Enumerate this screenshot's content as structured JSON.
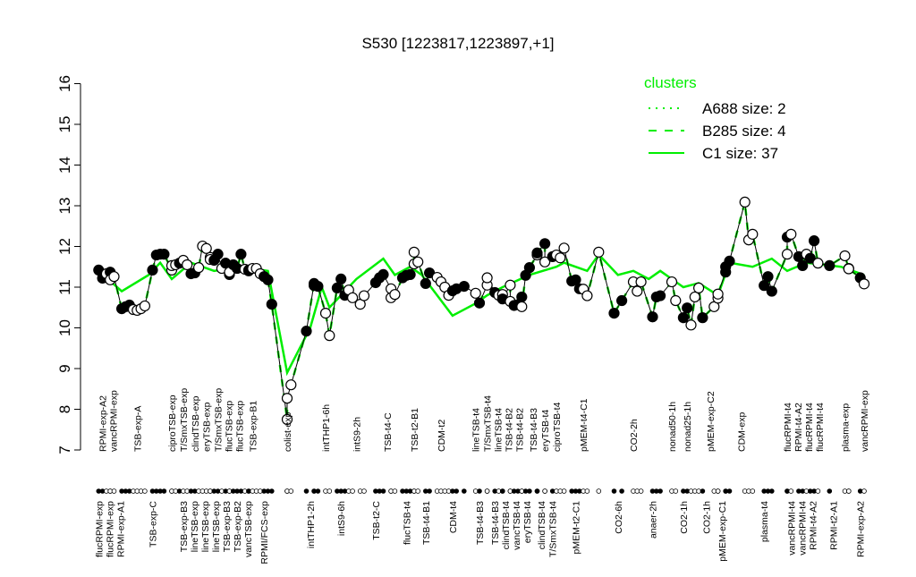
{
  "chart_data": {
    "type": "line",
    "title": "S530 [1223817,1223897,+1]",
    "xlabel": "",
    "ylabel": "",
    "ylim": [
      7,
      16
    ],
    "yticks": [
      7,
      8,
      9,
      10,
      11,
      12,
      13,
      14,
      15,
      16
    ],
    "xlim": [
      0,
      201
    ],
    "grid": false,
    "colors": {
      "profile": "#000000",
      "cluster": "#00ee00"
    },
    "legend": {
      "title": "clusters",
      "placement": "top-right",
      "entries": [
        {
          "label": "A688 size: 2",
          "style": "dotted"
        },
        {
          "label": "B285 size: 4",
          "style": "dashed"
        },
        {
          "label": "C1 size: 37",
          "style": "solid"
        }
      ]
    },
    "points": [
      [
        1,
        11.42,
        1
      ],
      [
        2,
        11.22,
        1
      ],
      [
        3,
        11.33,
        0
      ],
      [
        4,
        11.37,
        1
      ],
      [
        4,
        11.18,
        0
      ],
      [
        5,
        11.26,
        0
      ],
      [
        7,
        10.47,
        1
      ],
      [
        8,
        10.52,
        1
      ],
      [
        9,
        10.56,
        1
      ],
      [
        10,
        10.45,
        0
      ],
      [
        11,
        10.43,
        0
      ],
      [
        12,
        10.47,
        0
      ],
      [
        13,
        10.54,
        0
      ],
      [
        15,
        11.42,
        1
      ],
      [
        16,
        11.79,
        1
      ],
      [
        17,
        11.81,
        1
      ],
      [
        18,
        11.81,
        1
      ],
      [
        20,
        11.42,
        0
      ],
      [
        20,
        11.53,
        0
      ],
      [
        21,
        11.55,
        0
      ],
      [
        22,
        11.59,
        1
      ],
      [
        23,
        11.66,
        0
      ],
      [
        24,
        11.55,
        0
      ],
      [
        25,
        11.33,
        1
      ],
      [
        26,
        11.35,
        1
      ],
      [
        27,
        11.48,
        0
      ],
      [
        28,
        12.01,
        0
      ],
      [
        29,
        11.95,
        0
      ],
      [
        30,
        11.73,
        0
      ],
      [
        30,
        11.68,
        0
      ],
      [
        31,
        11.66,
        1
      ],
      [
        32,
        11.81,
        1
      ],
      [
        33,
        11.46,
        0
      ],
      [
        34,
        11.59,
        1
      ],
      [
        35,
        11.31,
        1
      ],
      [
        35,
        11.37,
        0
      ],
      [
        36,
        11.55,
        1
      ],
      [
        37,
        11.46,
        1
      ],
      [
        38,
        11.81,
        1
      ],
      [
        39,
        11.44,
        0
      ],
      [
        40,
        11.42,
        1
      ],
      [
        40,
        11.4,
        1
      ],
      [
        41,
        11.46,
        0
      ],
      [
        42,
        11.46,
        0
      ],
      [
        43,
        11.33,
        0
      ],
      [
        44,
        11.26,
        1
      ],
      [
        45,
        11.18,
        1
      ],
      [
        46,
        10.58,
        1
      ],
      [
        50,
        7.75,
        0
      ],
      [
        50,
        8.27,
        0
      ],
      [
        51,
        8.6,
        0
      ],
      [
        55,
        9.92,
        1
      ],
      [
        57,
        11.09,
        1
      ],
      [
        57,
        11.04,
        1
      ],
      [
        58,
        11.02,
        1
      ],
      [
        60,
        10.36,
        0
      ],
      [
        61,
        9.81,
        0
      ],
      [
        63,
        10.98,
        1
      ],
      [
        64,
        11.2,
        1
      ],
      [
        65,
        10.8,
        1
      ],
      [
        66,
        10.93,
        0
      ],
      [
        67,
        10.74,
        0
      ],
      [
        69,
        10.58,
        0
      ],
      [
        70,
        10.79,
        0
      ],
      [
        73,
        11.11,
        1
      ],
      [
        74,
        11.23,
        1
      ],
      [
        75,
        11.31,
        1
      ],
      [
        77,
        10.96,
        0
      ],
      [
        77,
        10.74,
        0
      ],
      [
        78,
        10.82,
        0
      ],
      [
        80,
        11.23,
        1
      ],
      [
        81,
        11.29,
        1
      ],
      [
        82,
        11.31,
        1
      ],
      [
        83,
        11.57,
        0
      ],
      [
        83,
        11.86,
        0
      ],
      [
        84,
        11.62,
        0
      ],
      [
        86,
        11.09,
        1
      ],
      [
        87,
        11.35,
        1
      ],
      [
        89,
        11.24,
        0
      ],
      [
        90,
        11.13,
        0
      ],
      [
        91,
        11.0,
        0
      ],
      [
        92,
        10.8,
        0
      ],
      [
        93,
        10.91,
        1
      ],
      [
        94,
        10.96,
        1
      ],
      [
        96,
        11.02,
        1
      ],
      [
        99,
        10.85,
        0
      ],
      [
        100,
        10.61,
        1
      ],
      [
        102,
        11.05,
        0
      ],
      [
        102,
        11.23,
        0
      ],
      [
        104,
        10.87,
        1
      ],
      [
        105,
        10.8,
        0
      ],
      [
        106,
        10.82,
        0
      ],
      [
        106,
        10.71,
        1
      ],
      [
        108,
        11.05,
        0
      ],
      [
        108,
        10.65,
        0
      ],
      [
        109,
        10.55,
        1
      ],
      [
        110,
        10.57,
        1
      ],
      [
        111,
        10.76,
        1
      ],
      [
        111,
        10.52,
        0
      ],
      [
        112,
        11.29,
        1
      ],
      [
        113,
        11.48,
        1
      ],
      [
        115,
        11.79,
        0
      ],
      [
        115,
        11.84,
        1
      ],
      [
        117,
        12.07,
        1
      ],
      [
        117,
        11.62,
        0
      ],
      [
        119,
        11.75,
        1
      ],
      [
        120,
        11.79,
        0
      ],
      [
        121,
        11.72,
        0
      ],
      [
        122,
        11.96,
        0
      ],
      [
        124,
        11.15,
        1
      ],
      [
        125,
        11.18,
        1
      ],
      [
        126,
        10.96,
        1
      ],
      [
        127,
        10.95,
        0
      ],
      [
        128,
        10.79,
        0
      ],
      [
        131,
        11.86,
        0
      ],
      [
        135,
        10.36,
        1
      ],
      [
        137,
        10.67,
        1
      ],
      [
        140,
        11.13,
        0
      ],
      [
        141,
        10.9,
        0
      ],
      [
        142,
        11.13,
        0
      ],
      [
        145,
        10.27,
        1
      ],
      [
        146,
        10.76,
        1
      ],
      [
        147,
        10.79,
        1
      ],
      [
        150,
        11.13,
        0
      ],
      [
        151,
        10.67,
        0
      ],
      [
        153,
        10.25,
        1
      ],
      [
        154,
        10.49,
        1
      ],
      [
        155,
        10.07,
        0
      ],
      [
        156,
        10.76,
        0
      ],
      [
        157,
        10.98,
        0
      ],
      [
        158,
        10.25,
        1
      ],
      [
        161,
        10.52,
        0
      ],
      [
        162,
        10.73,
        0
      ],
      [
        162,
        10.83,
        0
      ],
      [
        164,
        11.37,
        1
      ],
      [
        164,
        11.5,
        1
      ],
      [
        165,
        11.64,
        1
      ],
      [
        169,
        13.09,
        0
      ],
      [
        170,
        12.16,
        0
      ],
      [
        171,
        12.3,
        0
      ],
      [
        174,
        11.04,
        1
      ],
      [
        175,
        11.26,
        1
      ],
      [
        176,
        10.9,
        1
      ],
      [
        180,
        11.81,
        0
      ],
      [
        180,
        12.23,
        1
      ],
      [
        181,
        12.3,
        0
      ],
      [
        183,
        11.75,
        1
      ],
      [
        184,
        11.53,
        1
      ],
      [
        185,
        11.81,
        0
      ],
      [
        186,
        11.71,
        1
      ],
      [
        187,
        12.14,
        1
      ],
      [
        188,
        11.59,
        0
      ],
      [
        191,
        11.53,
        1
      ],
      [
        195,
        11.77,
        0
      ],
      [
        196,
        11.46,
        0
      ],
      [
        196,
        11.45,
        0
      ],
      [
        199,
        11.23,
        1
      ],
      [
        200,
        11.08,
        0
      ]
    ],
    "series": [
      {
        "name": "C1 size: 37",
        "style": "solid",
        "points": [
          [
            1,
            11.4
          ],
          [
            7,
            10.9
          ],
          [
            14,
            11.3
          ],
          [
            17,
            11.6
          ],
          [
            20,
            11.2
          ],
          [
            25,
            11.6
          ],
          [
            31,
            11.4
          ],
          [
            38,
            11.5
          ],
          [
            45,
            11.4
          ],
          [
            50,
            8.9
          ],
          [
            56,
            10.0
          ],
          [
            59,
            11.0
          ],
          [
            61,
            10.5
          ],
          [
            68,
            11.2
          ],
          [
            75,
            11.7
          ],
          [
            78,
            11.3
          ],
          [
            82,
            11.5
          ],
          [
            85,
            11.3
          ],
          [
            93,
            10.3
          ],
          [
            99,
            10.6
          ],
          [
            102,
            10.8
          ],
          [
            106,
            11.0
          ],
          [
            113,
            11.3
          ],
          [
            120,
            11.5
          ],
          [
            122,
            11.6
          ],
          [
            128,
            11.4
          ],
          [
            131,
            11.8
          ],
          [
            136,
            11.3
          ],
          [
            140,
            11.4
          ],
          [
            144,
            11.2
          ],
          [
            147,
            11.4
          ],
          [
            153,
            11.0
          ],
          [
            157,
            11.1
          ],
          [
            162,
            10.8
          ],
          [
            165,
            11.6
          ],
          [
            171,
            11.5
          ],
          [
            176,
            11.7
          ],
          [
            180,
            11.4
          ],
          [
            185,
            11.6
          ],
          [
            194,
            11.5
          ],
          [
            200,
            11.3
          ]
        ]
      }
    ],
    "top_labels": [
      [
        2,
        "RPMI-exp-A2"
      ],
      [
        4,
        "vancRPMI-exp"
      ],
      [
        11,
        "TSB-exp-A"
      ],
      [
        20,
        "ciproTSB-exp"
      ],
      [
        23,
        "T/SmxTSB-exp"
      ],
      [
        26,
        "clindTSB-exp"
      ],
      [
        29,
        "eryTSB-exp"
      ],
      [
        32,
        "T/SmxTSB-exp"
      ],
      [
        34,
        "flucTSB-exp"
      ],
      [
        37,
        "flucTSB-exp"
      ],
      [
        41,
        "TSB-exp-B1"
      ],
      [
        50,
        "colist-exp"
      ],
      [
        60,
        "intTHP1-6h"
      ],
      [
        68,
        "intS9-2h"
      ],
      [
        76,
        "TSB-t4-C"
      ],
      [
        83,
        "TSB-t2-B1"
      ],
      [
        90,
        "CDM-t2"
      ],
      [
        99,
        "lineTSB-t4"
      ],
      [
        102,
        "T/SmxTSB-t4"
      ],
      [
        104,
        "lineTSB-t4"
      ],
      [
        107,
        "TSB-t4-B2"
      ],
      [
        110,
        "TSB-t4-B2"
      ],
      [
        114,
        "TSB-t4-B3"
      ],
      [
        117,
        "eryTSB-t4"
      ],
      [
        120,
        "ciproTSB-t4"
      ],
      [
        127,
        "pMEM-t4-C1"
      ],
      [
        140,
        "CO2-2h"
      ],
      [
        150,
        "nonad50-1h"
      ],
      [
        154,
        "nonad25-1h"
      ],
      [
        160,
        "pMEM-exp-C2"
      ],
      [
        168,
        "CDM-exp"
      ],
      [
        180,
        "flucRPMI-t4"
      ],
      [
        181,
        "RPMI-t4-A2"
      ],
      [
        185,
        "flucRPMI-t4"
      ],
      [
        188,
        "flucRPMI-t4"
      ],
      [
        195,
        "plasma-exp"
      ],
      [
        200,
        "vancRPMI-exp"
      ]
    ],
    "bottom_labels": [
      [
        1,
        "flucRPMI-exp"
      ],
      [
        3,
        "flucRPMI-exp"
      ],
      [
        6,
        "RPMI-exp-A1"
      ],
      [
        15,
        "TSB-exp-C"
      ],
      [
        23,
        "TSB-exp-B3"
      ],
      [
        25,
        "lineTSB-exp"
      ],
      [
        28,
        "lineTSB-exp"
      ],
      [
        31,
        "lineTSB-exp"
      ],
      [
        32,
        "TSB-exp-B3"
      ],
      [
        35,
        "TSB-exp-B2"
      ],
      [
        38,
        "vancTSB-exp"
      ],
      [
        44,
        "RPMI/FCS-exp"
      ],
      [
        56,
        "intTHP1-2h"
      ],
      [
        64,
        "intS9-6h"
      ],
      [
        73,
        "TSB-t2-C"
      ],
      [
        81,
        "flucTSB-t4"
      ],
      [
        86,
        "TSB-t4-B1"
      ],
      [
        93,
        "CDM-t4"
      ],
      [
        100,
        "TSB-t4-B3"
      ],
      [
        104,
        "TSB-t4-B3"
      ],
      [
        106,
        "clindTSB-t4"
      ],
      [
        109,
        "vancTSB-t4"
      ],
      [
        112,
        "eryTSB-t4"
      ],
      [
        116,
        "clindTSB-t4"
      ],
      [
        119,
        "T/SmxTSB-t4"
      ],
      [
        125,
        "pMEM-t2-C1"
      ],
      [
        136,
        "CO2-6h"
      ],
      [
        145,
        "anaer-2h"
      ],
      [
        153,
        "CO2-1h"
      ],
      [
        159,
        "CO2-1h"
      ],
      [
        163,
        "pMEM-exp-C1"
      ],
      [
        174,
        "plasma-t4"
      ],
      [
        181,
        "vancRPMI-t4"
      ],
      [
        183,
        "vancRPMI-t4"
      ],
      [
        186,
        "RPMI-t4-A2"
      ],
      [
        192,
        "RPMI-t2-A1"
      ],
      [
        199,
        "RPMI-exp-A2"
      ]
    ]
  }
}
